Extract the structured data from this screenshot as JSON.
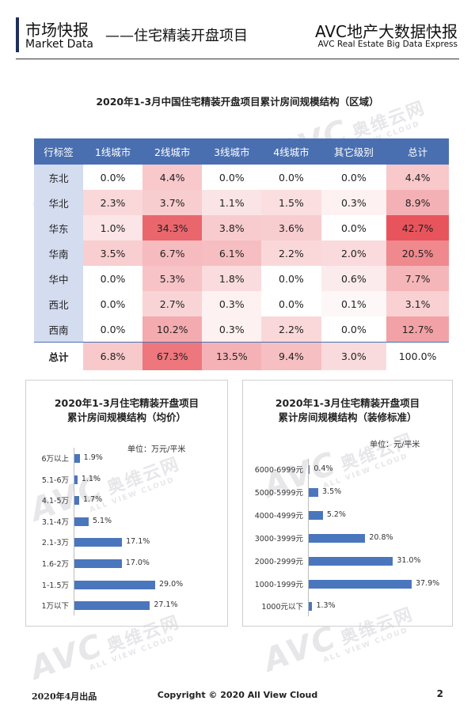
{
  "header": {
    "title_cn": "市场快报",
    "title_en": "Market Data",
    "subtitle": "——住宅精装开盘项目",
    "brand_cn": "AVC地产大数据快报",
    "brand_en": "AVC  Real Estate Big Data Express"
  },
  "watermark": {
    "logo": "AVC",
    "cn": "奥维云网",
    "en": "ALL VIEW CLOUD"
  },
  "region_table": {
    "title": "2020年1-3月中国住宅精装开盘项目累计房间规模结构（区域）",
    "headers": [
      "行标签",
      "1线城市",
      "2线城市",
      "3线城市",
      "4线城市",
      "其它级别",
      "总计"
    ],
    "rows": [
      {
        "label": "东北",
        "values": [
          "0.0%",
          "4.4%",
          "0.0%",
          "0.0%",
          "0.0%",
          "4.4%"
        ],
        "num": [
          0.0,
          4.4,
          0.0,
          0.0,
          0.0,
          4.4
        ]
      },
      {
        "label": "华北",
        "values": [
          "2.3%",
          "3.7%",
          "1.1%",
          "1.5%",
          "0.3%",
          "8.9%"
        ],
        "num": [
          2.3,
          3.7,
          1.1,
          1.5,
          0.3,
          8.9
        ]
      },
      {
        "label": "华东",
        "values": [
          "1.0%",
          "34.3%",
          "3.8%",
          "3.6%",
          "0.0%",
          "42.7%"
        ],
        "num": [
          1.0,
          34.3,
          3.8,
          3.6,
          0.0,
          42.7
        ]
      },
      {
        "label": "华南",
        "values": [
          "3.5%",
          "6.7%",
          "6.1%",
          "2.2%",
          "2.0%",
          "20.5%"
        ],
        "num": [
          3.5,
          6.7,
          6.1,
          2.2,
          2.0,
          20.5
        ]
      },
      {
        "label": "华中",
        "values": [
          "0.0%",
          "5.3%",
          "1.8%",
          "0.0%",
          "0.6%",
          "7.7%"
        ],
        "num": [
          0.0,
          5.3,
          1.8,
          0.0,
          0.6,
          7.7
        ]
      },
      {
        "label": "西北",
        "values": [
          "0.0%",
          "2.7%",
          "0.3%",
          "0.0%",
          "0.1%",
          "3.1%"
        ],
        "num": [
          0.0,
          2.7,
          0.3,
          0.0,
          0.1,
          3.1
        ]
      },
      {
        "label": "西南",
        "values": [
          "0.0%",
          "10.2%",
          "0.3%",
          "2.2%",
          "0.0%",
          "12.7%"
        ],
        "num": [
          0.0,
          10.2,
          0.3,
          2.2,
          0.0,
          12.7
        ]
      }
    ],
    "total": {
      "label": "总计",
      "values": [
        "6.8%",
        "67.3%",
        "13.5%",
        "9.4%",
        "3.0%",
        "100.0%"
      ],
      "num": [
        6.8,
        67.3,
        13.5,
        9.4,
        3.0,
        100.0
      ]
    },
    "header_color": "#4a6fb0",
    "label_bg": "#d4dcef",
    "heat_color": "#e8545c"
  },
  "chart_data": [
    {
      "type": "bar",
      "orientation": "horizontal",
      "title_line1": "2020年1-3月住宅精装开盘项目",
      "title_line2": "累计房间规模结构（均价）",
      "unit": "单位：万元/平米",
      "categories": [
        "6万以上",
        "5.1-6万",
        "4.1-5万",
        "3.1-4万",
        "2.1-3万",
        "1.6-2万",
        "1-1.5万",
        "1万以下"
      ],
      "values": [
        1.9,
        1.1,
        1.7,
        5.1,
        17.1,
        17.0,
        29.0,
        27.1
      ],
      "labels": [
        "1.9%",
        "1.1%",
        "1.7%",
        "5.1%",
        "17.1%",
        "17.0%",
        "29.0%",
        "27.1%"
      ],
      "color": "#4a76bd"
    },
    {
      "type": "bar",
      "orientation": "horizontal",
      "title_line1": "2020年1-3月住宅精装开盘项目",
      "title_line2": "累计房间规模结构（装修标准）",
      "unit": "单位：元/平米",
      "categories": [
        "6000-6999元",
        "5000-5999元",
        "4000-4999元",
        "3000-3999元",
        "2000-2999元",
        "1000-1999元",
        "1000元以下"
      ],
      "values": [
        0.4,
        3.5,
        5.2,
        20.8,
        31.0,
        37.9,
        1.3
      ],
      "labels": [
        "0.4%",
        "3.5%",
        "5.2%",
        "20.8%",
        "31.0%",
        "37.9%",
        "1.3%"
      ],
      "color": "#4a76bd"
    }
  ],
  "footer": {
    "date": "2020年4月出品",
    "copyright": "Copyright © 2020  All View Cloud",
    "page": "2"
  }
}
